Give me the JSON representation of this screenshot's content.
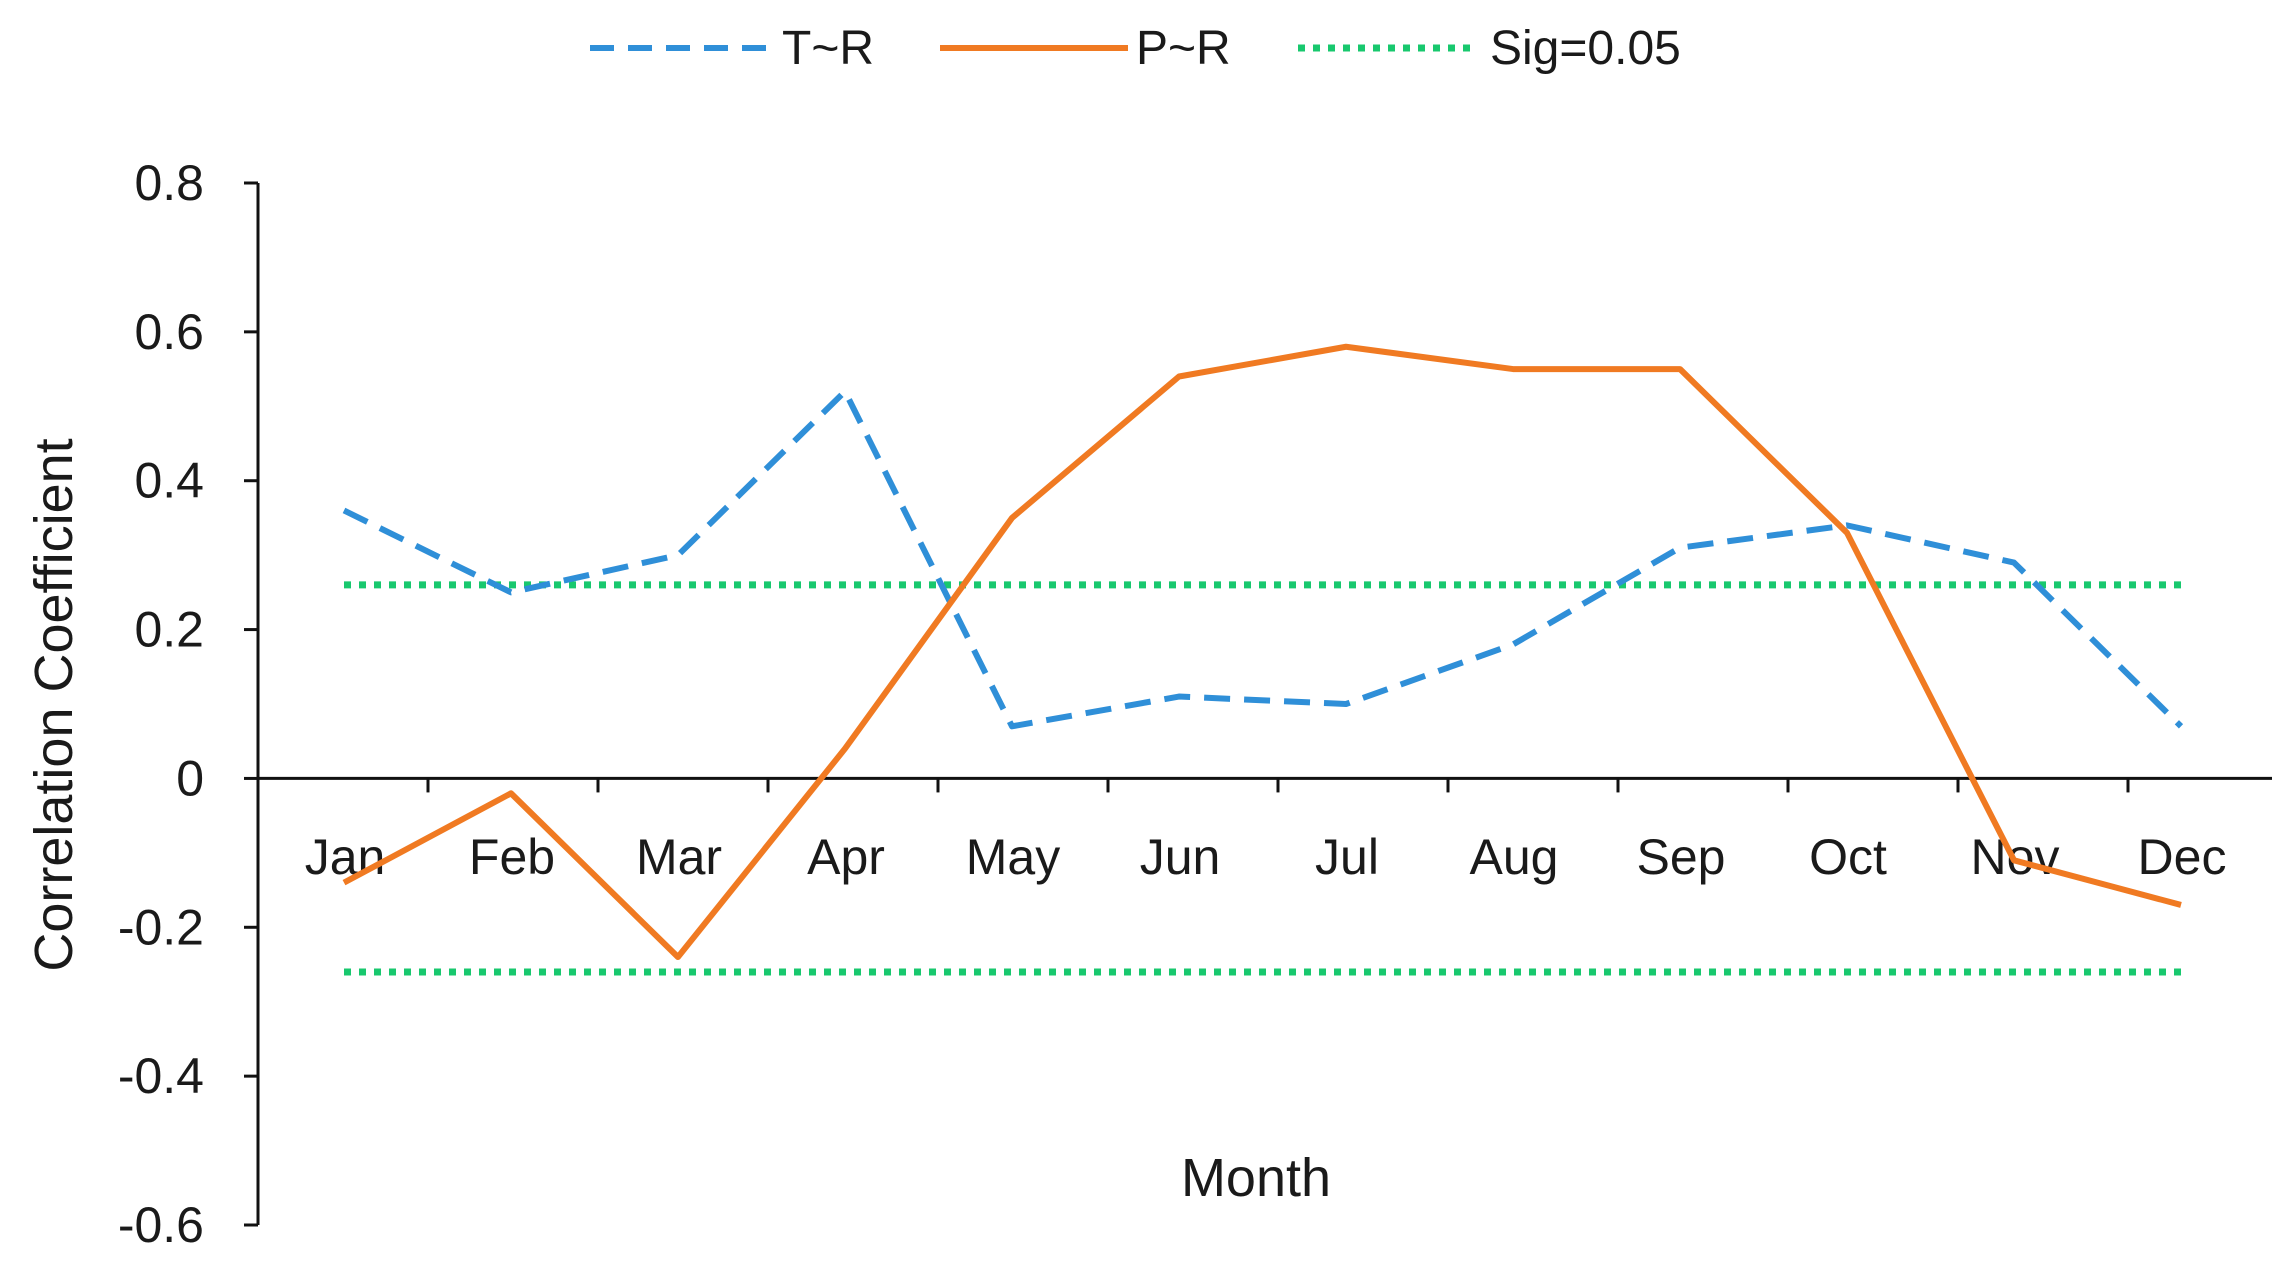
{
  "chart_data": {
    "type": "line",
    "title": "",
    "xlabel": "Month",
    "ylabel": "Correlation Coefficient",
    "categories": [
      "Jan",
      "Feb",
      "Mar",
      "Apr",
      "May",
      "Jun",
      "Jul",
      "Aug",
      "Sep",
      "Oct",
      "Nov",
      "Dec"
    ],
    "ylim": [
      -0.6,
      0.8
    ],
    "yticks": [
      "0.8",
      "0.6",
      "0.4",
      "0.2",
      "0",
      "-0.2",
      "-0.4",
      "-0.6"
    ],
    "ytick_values": [
      0.8,
      0.6,
      0.4,
      0.2,
      0,
      -0.2,
      -0.4,
      -0.6
    ],
    "grid": false,
    "legend_position": "top",
    "series": [
      {
        "name": "T~R",
        "color": "#2F8FD8",
        "style": "dashed",
        "values": [
          0.36,
          0.25,
          0.3,
          0.52,
          0.07,
          0.11,
          0.1,
          0.18,
          0.31,
          0.34,
          0.29,
          0.07
        ]
      },
      {
        "name": "P~R",
        "color": "#F07A22",
        "style": "solid",
        "values": [
          -0.14,
          -0.02,
          -0.24,
          0.04,
          0.35,
          0.54,
          0.58,
          0.55,
          0.55,
          0.33,
          -0.11,
          -0.17
        ]
      }
    ],
    "reference_lines": {
      "name": "Sig=0.05",
      "color": "#18C86E",
      "style": "dotted",
      "values": [
        0.26,
        -0.26
      ]
    }
  }
}
